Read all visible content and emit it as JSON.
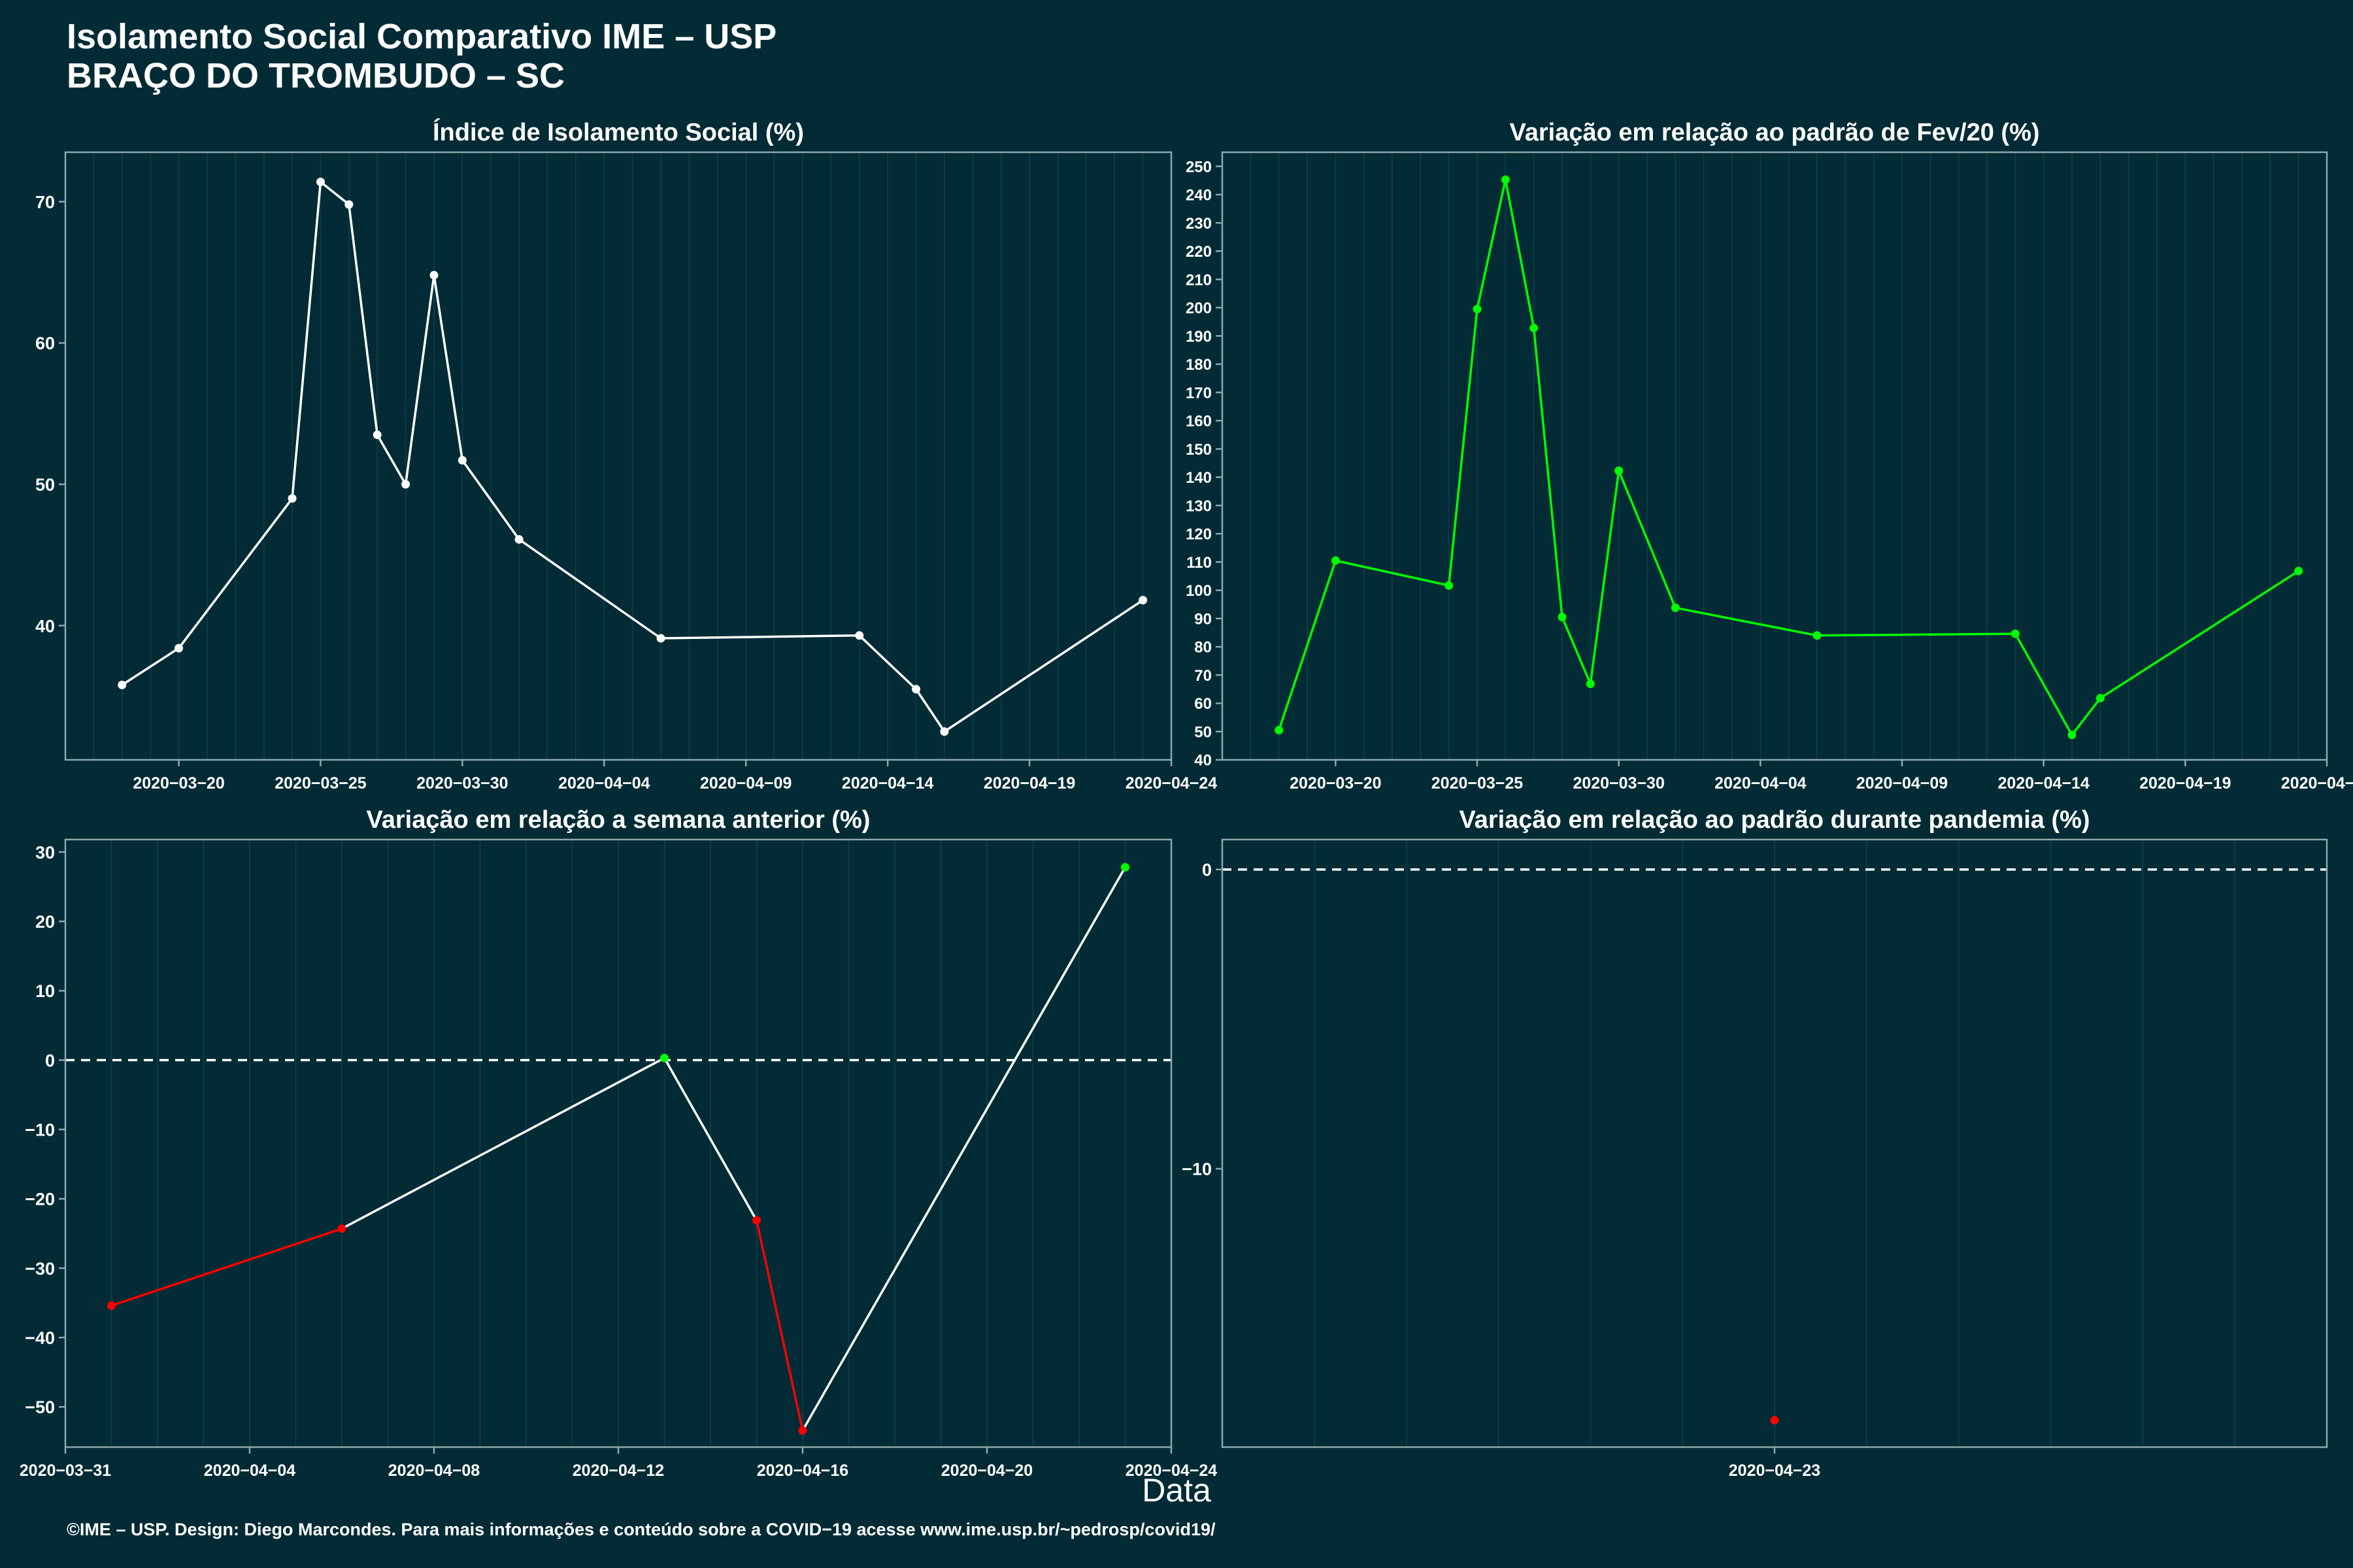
{
  "header": {
    "title_line1": "Isolamento Social Comparativo IME – USP",
    "title_line2": "BRAÇO DO TROMBUDO – SC"
  },
  "xlabel": "Data",
  "footer": "©IME – USP. Design: Diego Marcondes. Para mais informações e conteúdo sobre a COVID−19 acesse www.ime.usp.br/~pedrosp/covid19/",
  "colors": {
    "background": "#022b36",
    "line": "#ffffff",
    "positive": "#00ff00",
    "negative": "#ff0000",
    "axis": "#8fa7ad",
    "grid": "#0c3b46"
  },
  "chart_data": [
    {
      "id": "indice",
      "type": "line",
      "title": "Índice de Isolamento Social (%)",
      "xlabel": "",
      "ylabel": "",
      "x_type": "date",
      "xlim": [
        "2020-03-16",
        "2020-04-24"
      ],
      "ylim": [
        30.5,
        73.5
      ],
      "yticks": [
        40,
        50,
        60,
        70
      ],
      "xticks": [
        "2020-03-20",
        "2020-03-25",
        "2020-03-30",
        "2020-04-04",
        "2020-04-09",
        "2020-04-14",
        "2020-04-19",
        "2020-04-24"
      ],
      "color_mode": "white",
      "points": [
        {
          "x": "2020-03-18",
          "y": 35.8
        },
        {
          "x": "2020-03-20",
          "y": 38.4
        },
        {
          "x": "2020-03-24",
          "y": 49.0
        },
        {
          "x": "2020-03-25",
          "y": 71.4
        },
        {
          "x": "2020-03-26",
          "y": 69.8
        },
        {
          "x": "2020-03-27",
          "y": 53.5
        },
        {
          "x": "2020-03-28",
          "y": 50.0
        },
        {
          "x": "2020-03-29",
          "y": 64.8
        },
        {
          "x": "2020-03-30",
          "y": 51.7
        },
        {
          "x": "2020-04-01",
          "y": 46.1
        },
        {
          "x": "2020-04-06",
          "y": 39.1
        },
        {
          "x": "2020-04-13",
          "y": 39.3
        },
        {
          "x": "2020-04-15",
          "y": 35.5
        },
        {
          "x": "2020-04-16",
          "y": 32.5
        },
        {
          "x": "2020-04-23",
          "y": 41.8
        }
      ],
      "grid": true
    },
    {
      "id": "fev",
      "type": "line",
      "title": "Variação em relação ao padrão de Fev/20 (%)",
      "xlabel": "",
      "ylabel": "",
      "x_type": "date",
      "xlim": [
        "2020-03-16",
        "2020-04-24"
      ],
      "ylim": [
        40,
        255
      ],
      "yticks": [
        40,
        50,
        60,
        70,
        80,
        90,
        100,
        110,
        120,
        130,
        140,
        150,
        160,
        170,
        180,
        190,
        200,
        210,
        220,
        230,
        240,
        250
      ],
      "xticks": [
        "2020-03-20",
        "2020-03-25",
        "2020-03-30",
        "2020-04-04",
        "2020-04-09",
        "2020-04-14",
        "2020-04-19",
        "2020-04-24"
      ],
      "color_mode": "trend",
      "points": [
        {
          "x": "2020-03-18",
          "y": 50.5
        },
        {
          "x": "2020-03-20",
          "y": 110.5
        },
        {
          "x": "2020-03-24",
          "y": 101.7
        },
        {
          "x": "2020-03-25",
          "y": 199.5
        },
        {
          "x": "2020-03-26",
          "y": 245.3
        },
        {
          "x": "2020-03-27",
          "y": 192.8
        },
        {
          "x": "2020-03-28",
          "y": 90.5
        },
        {
          "x": "2020-03-29",
          "y": 66.9
        },
        {
          "x": "2020-03-30",
          "y": 142.3
        },
        {
          "x": "2020-04-01",
          "y": 93.8
        },
        {
          "x": "2020-04-06",
          "y": 84.0
        },
        {
          "x": "2020-04-13",
          "y": 84.6
        },
        {
          "x": "2020-04-15",
          "y": 48.8
        },
        {
          "x": "2020-04-16",
          "y": 61.8
        },
        {
          "x": "2020-04-23",
          "y": 106.8
        }
      ],
      "grid": true
    },
    {
      "id": "semana",
      "type": "line",
      "title": "Variação em relação a semana anterior (%)",
      "xlabel": "",
      "ylabel": "",
      "x_type": "date",
      "xlim": [
        "2020-03-31",
        "2020-04-24"
      ],
      "ylim": [
        -55.8,
        31.8
      ],
      "yticks": [
        -50,
        -40,
        -30,
        -20,
        -10,
        0,
        10,
        20,
        30
      ],
      "xticks": [
        "2020-03-31",
        "2020-04-04",
        "2020-04-08",
        "2020-04-12",
        "2020-04-16",
        "2020-04-20",
        "2020-04-24"
      ],
      "color_mode": "sign",
      "zero_line": true,
      "points": [
        {
          "x": "2020-04-01",
          "y": -35.4
        },
        {
          "x": "2020-04-06",
          "y": -24.3
        },
        {
          "x": "2020-04-13",
          "y": 0.3
        },
        {
          "x": "2020-04-15",
          "y": -23.1
        },
        {
          "x": "2020-04-16",
          "y": -53.4
        },
        {
          "x": "2020-04-23",
          "y": 27.8
        }
      ],
      "grid": true
    },
    {
      "id": "pandemia",
      "type": "line",
      "title": "Variação em relação ao padrão durante pandemia (%)",
      "xlabel": "",
      "ylabel": "",
      "x_type": "date",
      "xlim": [
        "2020-04-17",
        "2020-04-29"
      ],
      "ylim": [
        -19.3,
        1.0
      ],
      "yticks": [
        -10,
        0
      ],
      "xticks": [
        "2020-04-23"
      ],
      "color_mode": "sign",
      "zero_line": true,
      "points": [
        {
          "x": "2020-04-23",
          "y": -18.4
        }
      ],
      "grid": true
    }
  ]
}
